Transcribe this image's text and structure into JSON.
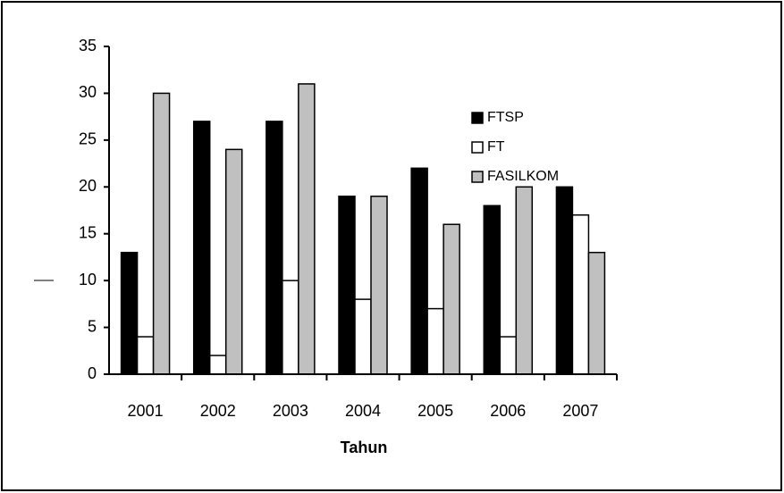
{
  "chart_data": {
    "type": "bar",
    "x_label": "Tahun",
    "categories": [
      "2001",
      "2002",
      "2003",
      "2004",
      "2005",
      "2006",
      "2007"
    ],
    "series": [
      {
        "name": "FTSP",
        "color": "#000000",
        "values": [
          13,
          27,
          27,
          19,
          22,
          18,
          20
        ]
      },
      {
        "name": "FT",
        "color": "#ffffff",
        "values": [
          4,
          2,
          10,
          8,
          7,
          4,
          17
        ]
      },
      {
        "name": "FASILKOM",
        "color": "#c0c0c0",
        "values": [
          30,
          24,
          31,
          19,
          16,
          20,
          13
        ]
      }
    ],
    "ylim": [
      0,
      35
    ],
    "yticks": [
      0,
      5,
      10,
      15,
      20,
      25,
      30,
      35
    ],
    "grid": false,
    "legend": "upper right"
  }
}
